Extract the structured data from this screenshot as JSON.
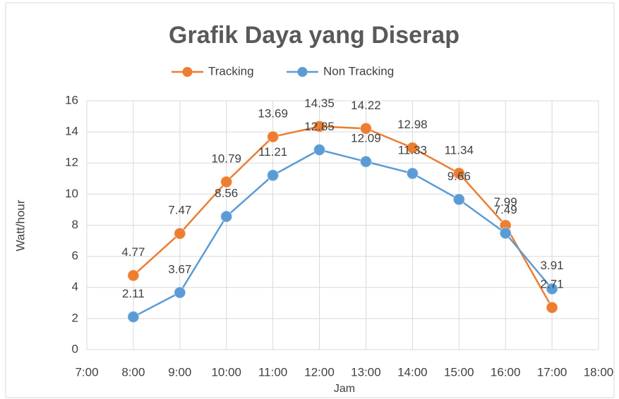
{
  "chart_data": {
    "type": "line",
    "title": "Grafik Daya yang Diserap",
    "x": [
      8,
      9,
      10,
      11,
      12,
      13,
      14,
      15,
      16,
      17
    ],
    "series": [
      {
        "name": "Tracking",
        "color": "#ED7D31",
        "values": [
          4.77,
          7.47,
          10.79,
          13.69,
          14.35,
          14.22,
          12.98,
          11.34,
          7.99,
          2.71
        ]
      },
      {
        "name": "Non Tracking",
        "color": "#5B9BD5",
        "values": [
          2.11,
          3.67,
          8.56,
          11.21,
          12.85,
          12.09,
          11.33,
          9.66,
          7.49,
          3.91
        ]
      }
    ],
    "xlim": [
      7,
      18
    ],
    "xticks": [
      {
        "value": 7,
        "label": "7:00"
      },
      {
        "value": 8,
        "label": "8:00"
      },
      {
        "value": 9,
        "label": "9:00"
      },
      {
        "value": 10,
        "label": "10:00"
      },
      {
        "value": 11,
        "label": "11:00"
      },
      {
        "value": 12,
        "label": "12:00"
      },
      {
        "value": 13,
        "label": "13:00"
      },
      {
        "value": 14,
        "label": "14:00"
      },
      {
        "value": 15,
        "label": "15:00"
      },
      {
        "value": 16,
        "label": "16:00"
      },
      {
        "value": 17,
        "label": "17:00"
      },
      {
        "value": 18,
        "label": "18:00"
      }
    ],
    "ylim": [
      0,
      16
    ],
    "yticks": [
      0,
      2,
      4,
      6,
      8,
      10,
      12,
      14,
      16
    ],
    "xlabel": "Jam",
    "ylabel": "Watt/hour",
    "grid": true,
    "legend": "top"
  }
}
